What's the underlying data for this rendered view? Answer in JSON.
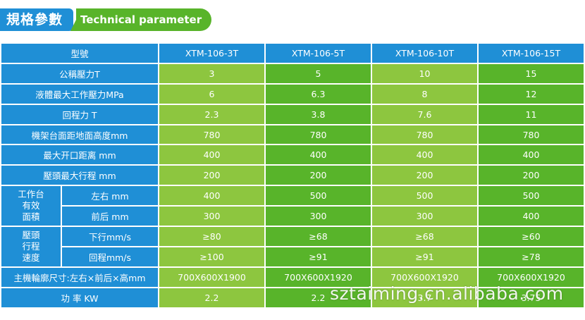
{
  "header": {
    "title_cn": "規格參數",
    "title_en": "Technical parameter"
  },
  "table": {
    "model_label": "型號",
    "models": [
      "XTM-106-3T",
      "XTM-106-5T",
      "XTM-106-10T",
      "XTM-106-15T"
    ],
    "simple_rows": [
      {
        "label": "公稱壓力T",
        "values": [
          "3",
          "5",
          "10",
          "15"
        ]
      },
      {
        "label": "液體最大工作壓力MPa",
        "values": [
          "6",
          "6.3",
          "8",
          "12"
        ]
      },
      {
        "label": "回程力 T",
        "values": [
          "2.3",
          "3.8",
          "7.6",
          "11"
        ]
      },
      {
        "label": "機架台面距地面高度mm",
        "values": [
          "780",
          "780",
          "780",
          "780"
        ]
      },
      {
        "label": "最大开口距离  mm",
        "values": [
          "400",
          "400",
          "400",
          "400"
        ]
      },
      {
        "label": "壓頭最大行程  mm",
        "values": [
          "200",
          "200",
          "200",
          "200"
        ]
      }
    ],
    "group1": {
      "label": "工作台有效面積",
      "label_lines": [
        "工作台",
        "有效",
        "面積"
      ],
      "rows": [
        {
          "label": "左右 mm",
          "values": [
            "400",
            "500",
            "500",
            "500"
          ]
        },
        {
          "label": "前后 mm",
          "values": [
            "300",
            "300",
            "300",
            "400"
          ]
        }
      ]
    },
    "group2": {
      "label": "壓頭行程速度",
      "label_lines": [
        "壓頭",
        "行程",
        "速度"
      ],
      "rows": [
        {
          "label": "下行mm/s",
          "values": [
            "≥80",
            "≥68",
            "≥68",
            "≥60"
          ]
        },
        {
          "label": "回程mm/s",
          "values": [
            "≥100",
            "≥91",
            "≥91",
            "≥78"
          ]
        }
      ]
    },
    "tail_rows": [
      {
        "label": "主機輪廓尺寸:左右×前后×高mm",
        "values": [
          "700X600X1900",
          "700X600X1920",
          "700X600X1920",
          "700X600X1920"
        ]
      },
      {
        "label": "功 率  KW",
        "values": [
          "2.2",
          "2.2",
          "3.7",
          "3.75"
        ]
      }
    ]
  },
  "watermark": "sztaiming.cn.alibaba.com",
  "colors": {
    "header_blue": "#1f8fd6",
    "value_green": "#8dc63f",
    "model_green": "#58b42a"
  }
}
